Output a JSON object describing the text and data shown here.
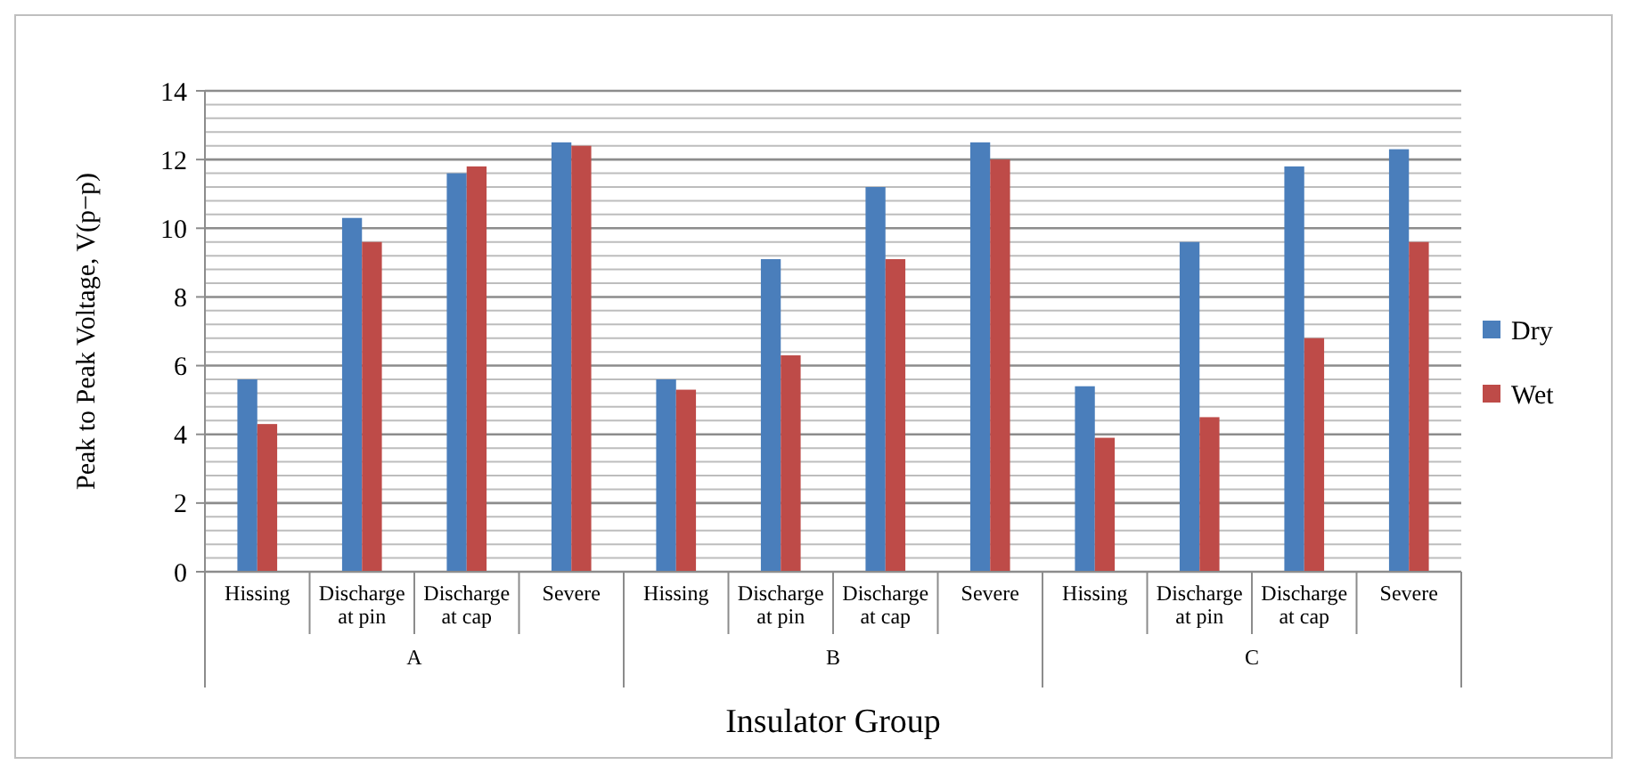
{
  "chart_data": {
    "type": "bar",
    "xlabel": "Insulator Group",
    "ylabel": "Peak to Peak Voltage, V(p−p)",
    "categories": [
      "Hissing",
      "Discharge at pin",
      "Discharge at cap",
      "Severe",
      "Hissing",
      "Discharge at pin",
      "Discharge at cap",
      "Severe",
      "Hissing",
      "Discharge at pin",
      "Discharge at cap",
      "Severe"
    ],
    "annotations": [
      "A",
      "B",
      "C"
    ],
    "series": [
      {
        "name": "Dry",
        "color": "#4a7ebb",
        "values": [
          5.6,
          10.3,
          11.6,
          12.5,
          5.6,
          9.1,
          11.2,
          12.5,
          5.4,
          9.6,
          11.8,
          12.3
        ]
      },
      {
        "name": "Wet",
        "color": "#be4b48",
        "values": [
          4.3,
          9.6,
          11.8,
          12.4,
          5.3,
          6.3,
          9.1,
          12.0,
          3.9,
          4.5,
          6.8,
          9.6
        ]
      }
    ],
    "ylim": [
      0,
      14
    ],
    "yticks": [
      0,
      {
        "value": 0.4,
        "label": null
      },
      {
        "value": 0.8,
        "label": null
      },
      {
        "value": 1.2,
        "label": null
      },
      {
        "value": 1.6,
        "label": null
      },
      2,
      {
        "value": 2.4,
        "label": null
      },
      {
        "value": 2.8,
        "label": null
      },
      {
        "value": 3.2,
        "label": null
      },
      {
        "value": 3.6,
        "label": null
      },
      4,
      {
        "value": 4.4,
        "label": null
      },
      {
        "value": 4.8,
        "label": null
      },
      {
        "value": 5.2,
        "label": null
      },
      {
        "value": 5.6,
        "label": null
      },
      6,
      {
        "value": 6.4,
        "label": null
      },
      {
        "value": 6.8,
        "label": null
      },
      {
        "value": 7.2,
        "label": null
      },
      {
        "value": 7.6,
        "label": null
      },
      8,
      {
        "value": 8.4,
        "label": null
      },
      {
        "value": 8.8,
        "label": null
      },
      {
        "value": 9.2,
        "label": null
      },
      {
        "value": 9.6,
        "label": null
      },
      10,
      {
        "value": 10.4,
        "label": null
      },
      {
        "value": 10.8,
        "label": null
      },
      {
        "value": 11.2,
        "label": null
      },
      {
        "value": 11.6,
        "label": null
      },
      12,
      {
        "value": 12.4,
        "label": null
      },
      {
        "value": 12.8,
        "label": null
      },
      {
        "value": 13.2,
        "label": null
      },
      {
        "value": 13.6,
        "label": null
      },
      14
    ],
    "grid": true,
    "legend": "right"
  }
}
